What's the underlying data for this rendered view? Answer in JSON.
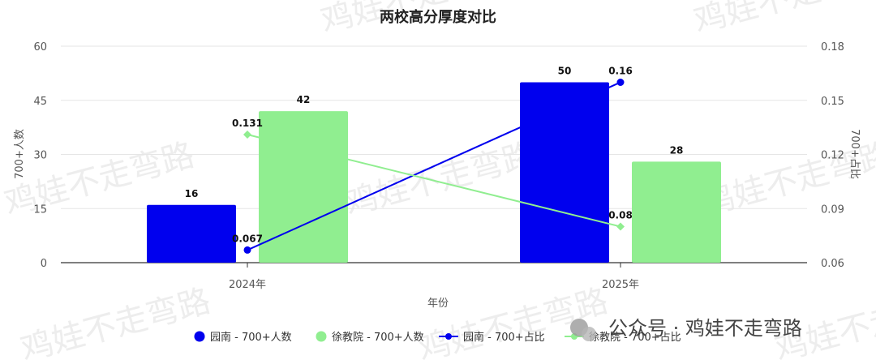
{
  "chart_data": {
    "type": "bar",
    "title": "两校高分厚度对比",
    "xlabel": "年份",
    "ylabel": "700+人数",
    "y2label": "700+占比",
    "categories": [
      "2024年",
      "2025年"
    ],
    "ylim": [
      0,
      60
    ],
    "y2lim": [
      0.06,
      0.18
    ],
    "yticks": [
      "0",
      "15",
      "30",
      "45",
      "60"
    ],
    "y2ticks": [
      "0.06",
      "0.09",
      "0.12",
      "0.15",
      "0.18"
    ],
    "bar_series": [
      {
        "name": "园南 - 700+人数",
        "values": [
          16,
          50
        ],
        "labels": [
          "16",
          "50"
        ],
        "color": "#0000ee"
      },
      {
        "name": "徐教院 - 700+人数",
        "values": [
          42,
          28
        ],
        "labels": [
          "42",
          "28"
        ],
        "color": "#90ee90"
      }
    ],
    "line_series": [
      {
        "name": "园南 - 700+占比",
        "values": [
          0.067,
          0.16
        ],
        "labels": [
          "0.067",
          "0.16"
        ],
        "color": "#0000ee"
      },
      {
        "name": "徐教院 - 700+占比",
        "values": [
          0.131,
          0.08
        ],
        "labels": [
          "0.131",
          "0.08"
        ],
        "color": "#90ee90"
      }
    ],
    "legend_position": "bottom",
    "grid": true
  },
  "watermark": {
    "text": "鸡娃不走弯路",
    "account": "公众号 · 鸡娃不走弯路",
    "icon": "wechat-icon"
  }
}
